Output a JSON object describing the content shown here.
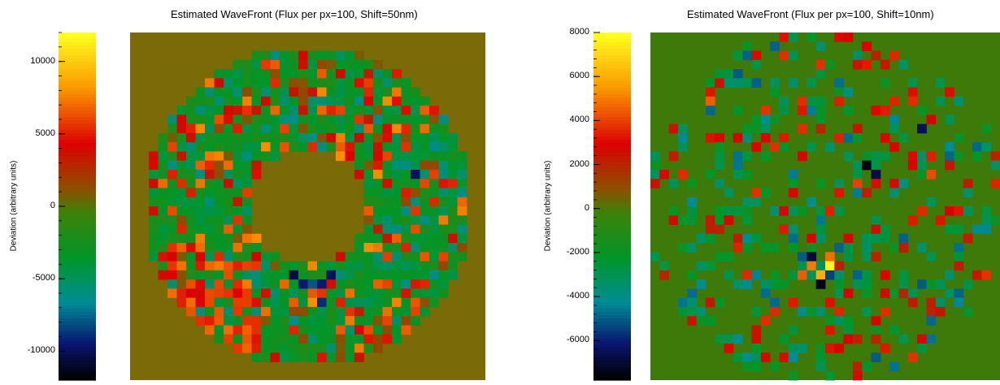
{
  "chart_data": [
    {
      "type": "heatmap",
      "title": "Estimated WaveFront (Flux per px=100, Shift=50nm)",
      "colorbar": {
        "label": "Deviation (arbitrary units)",
        "range": [
          -12000,
          12000
        ],
        "ticks": [
          10000,
          5000,
          0,
          -5000,
          -10000
        ],
        "tick_labels": [
          "10000",
          "5000",
          "0",
          "-5000",
          "-10000"
        ]
      },
      "background_color": "#7a6a08",
      "grid_size": 38,
      "pupil": {
        "outer_radius_cells": 17.5,
        "inner_radius_cells": 6.5
      },
      "seed": 11,
      "hot_cells": [
        {
          "col": 6,
          "row": 33,
          "value": 11500
        },
        {
          "col": 7,
          "row": 33,
          "value": 11200
        },
        {
          "col": 8,
          "row": 35,
          "value": 11000
        },
        {
          "col": 7,
          "row": 32,
          "value": 8800
        },
        {
          "col": 5,
          "row": 31,
          "value": 8200
        },
        {
          "col": 13,
          "row": 1,
          "value": 8000
        },
        {
          "col": 16,
          "row": 1,
          "value": 8000
        }
      ],
      "cold_cells": [
        {
          "col": 17,
          "row": 26,
          "value": -10500
        },
        {
          "col": 18,
          "row": 27,
          "value": -9500
        },
        {
          "col": 20,
          "row": 27,
          "value": -9500
        },
        {
          "col": 21,
          "row": 26,
          "value": -10000
        },
        {
          "col": 20,
          "row": 29,
          "value": -9000
        },
        {
          "col": 24,
          "row": 16,
          "value": -10000
        },
        {
          "col": 30,
          "row": 15,
          "value": -10000
        },
        {
          "col": 33,
          "row": 8,
          "value": -10500
        },
        {
          "col": 19,
          "row": 27,
          "value": -8000
        }
      ]
    },
    {
      "type": "heatmap",
      "title": "Estimated WaveFront (Flux per px=100, Shift=10nm)",
      "colorbar": {
        "label": "Deviation (arbitrary units)",
        "range": [
          -7800,
          8000
        ],
        "ticks": [
          8000,
          6000,
          4000,
          2000,
          0,
          -2000,
          -4000,
          -6000
        ],
        "tick_labels": [
          "8000",
          "6000",
          "4000",
          "2000",
          "0",
          "-2000",
          "-4000",
          "-6000"
        ]
      },
      "background_color": "#3e7a0a",
      "grid_size": 38,
      "pupil": {
        "outer_radius_cells": 19.5,
        "inner_radius_cells": 0
      },
      "seed": 29,
      "hot_cells": [
        {
          "col": 19,
          "row": 25,
          "value": 7800
        },
        {
          "col": 18,
          "row": 26,
          "value": 6000
        },
        {
          "col": 17,
          "row": 25,
          "value": 5000
        },
        {
          "col": 19,
          "row": 24,
          "value": 4800
        },
        {
          "col": 6,
          "row": 7,
          "value": 4500
        },
        {
          "col": 16,
          "row": 26,
          "value": 4500
        },
        {
          "col": 30,
          "row": 15,
          "value": 4200
        },
        {
          "col": 22,
          "row": 16,
          "value": 4000
        }
      ],
      "cold_cells": [
        {
          "col": 18,
          "row": 27,
          "value": -7500
        },
        {
          "col": 17,
          "row": 24,
          "value": -7000
        },
        {
          "col": 23,
          "row": 14,
          "value": -7500
        },
        {
          "col": 24,
          "row": 15,
          "value": -6800
        },
        {
          "col": 29,
          "row": 10,
          "value": -6500
        },
        {
          "col": 19,
          "row": 26,
          "value": -5500
        },
        {
          "col": 20,
          "row": 23,
          "value": -5000
        }
      ]
    }
  ]
}
